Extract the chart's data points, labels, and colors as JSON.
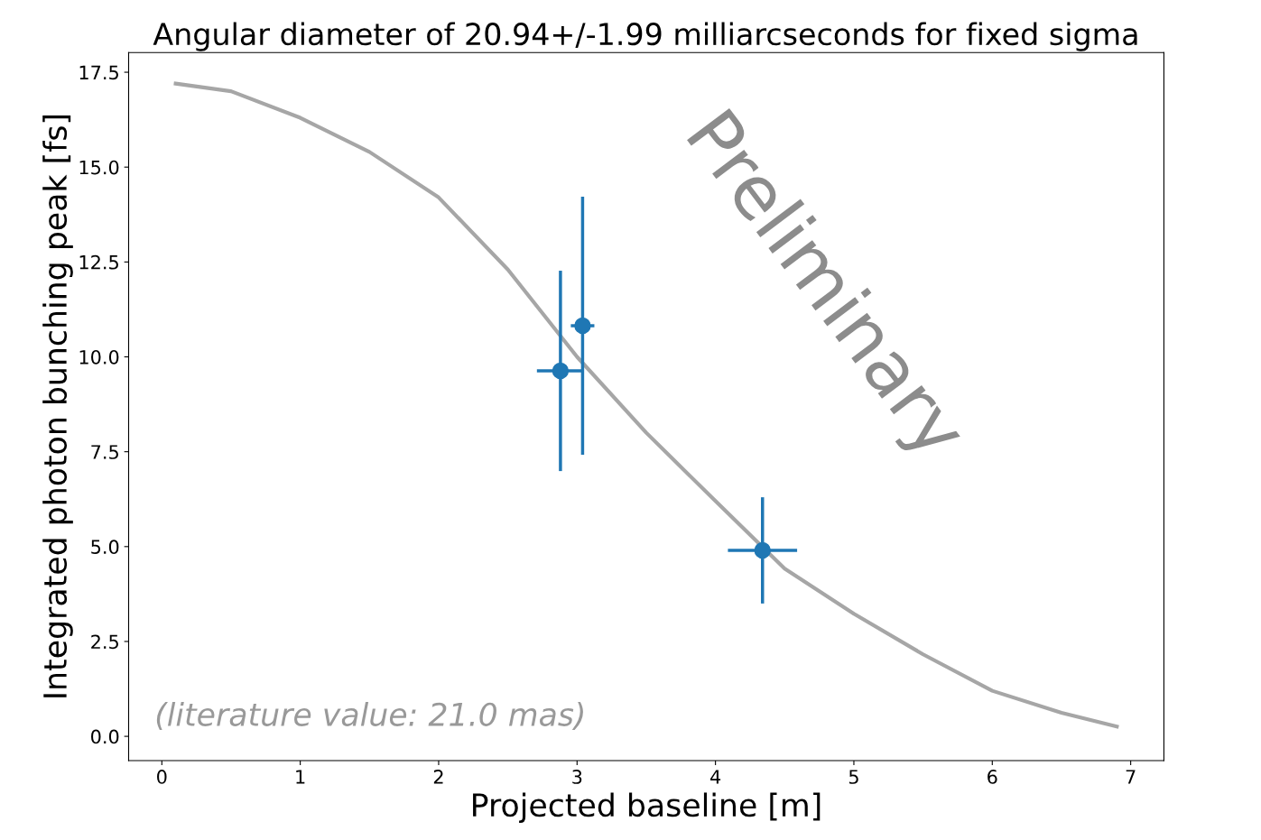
{
  "chart_data": {
    "type": "scatter",
    "title": "Angular diameter of 20.94+/-1.99 milliarcseconds for fixed sigma",
    "xlabel": "Projected baseline [m]",
    "ylabel": "Integrated photon bunching peak [fs]",
    "series": [
      {
        "type": "line",
        "marker": "none",
        "color": "#a6a6a6",
        "x": [
          0.1,
          0.5,
          1.0,
          1.5,
          2.0,
          2.5,
          3.0,
          3.5,
          4.0,
          4.5,
          5.0,
          5.5,
          6.0,
          6.5,
          6.9
        ],
        "values": [
          17.2,
          17.0,
          16.3,
          15.4,
          14.2,
          12.3,
          10.0,
          8.0,
          6.2,
          4.42,
          3.23,
          2.16,
          1.2,
          0.62,
          0.26
        ]
      },
      {
        "marker": "circle",
        "color": "#1f77b4",
        "x": [
          2.88,
          3.04,
          4.34
        ],
        "values": [
          9.63,
          10.82,
          4.9
        ],
        "errors": [
          2.64,
          3.4,
          1.4
        ],
        "xerrors": [
          0.17,
          0.085,
          0.25
        ]
      }
    ],
    "xlim": [
      -0.24,
      7.24
    ],
    "ylim": [
      -0.64,
      18.02
    ],
    "xticks": [
      0,
      1,
      2,
      3,
      4,
      5,
      6,
      7
    ],
    "yticks": [
      {
        "value": 0,
        "label": "0.0"
      },
      {
        "value": 2.5,
        "label": "2.5"
      },
      {
        "value": 5,
        "label": "5.0"
      },
      {
        "value": 7.5,
        "label": "7.5"
      },
      {
        "value": 10,
        "label": "10.0"
      },
      {
        "value": 12.5,
        "label": "12.5"
      },
      {
        "value": 15,
        "label": "15.0"
      },
      {
        "value": 17.5,
        "label": "17.5"
      }
    ],
    "grid": false,
    "annotations": [
      "(literature value: 21.0 mas)",
      "Preliminary"
    ]
  }
}
